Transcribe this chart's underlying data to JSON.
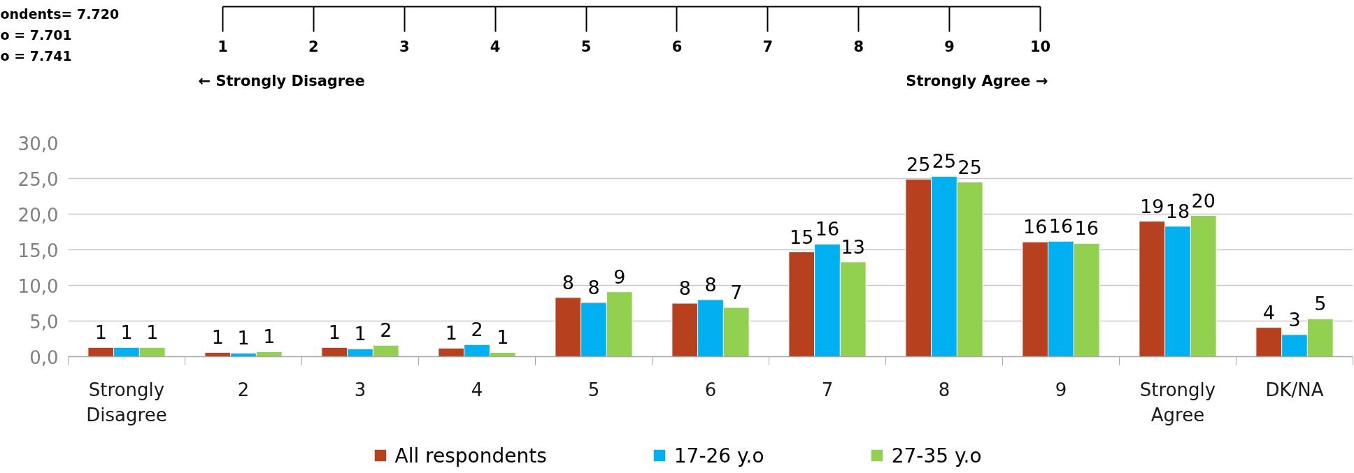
{
  "chart_data": {
    "type": "bar",
    "categories": [
      "Strongly Disagree",
      "2",
      "3",
      "4",
      "5",
      "6",
      "7",
      "8",
      "9",
      "Strongly Agree",
      "DK/NA"
    ],
    "series": [
      {
        "name": "All respondents",
        "color": "#b7411f",
        "values": [
          1.3,
          0.6,
          1.3,
          1.2,
          8.3,
          7.5,
          14.7,
          24.9,
          16.1,
          19.0,
          4.1
        ],
        "value_labels": [
          "1",
          "1",
          "1",
          "1",
          "8",
          "8",
          "15",
          "25",
          "16",
          "19",
          "4"
        ]
      },
      {
        "name": "17-26 y.o",
        "color": "#00b0f0",
        "values": [
          1.3,
          0.5,
          1.1,
          1.7,
          7.6,
          8.0,
          15.8,
          25.3,
          16.2,
          18.3,
          3.1
        ],
        "value_labels": [
          "1",
          "1",
          "1",
          "2",
          "8",
          "8",
          "16",
          "25",
          "16",
          "18",
          "3"
        ]
      },
      {
        "name": "27-35 y.o",
        "color": "#92d050",
        "values": [
          1.3,
          0.7,
          1.6,
          0.6,
          9.1,
          6.9,
          13.3,
          24.5,
          15.9,
          19.8,
          5.3
        ],
        "value_labels": [
          "1",
          "1",
          "2",
          "1",
          "9",
          "7",
          "13",
          "25",
          "16",
          "20",
          "5"
        ]
      }
    ],
    "ylim": [
      0,
      30
    ],
    "yticks": [
      {
        "value": 0,
        "label": "0,0"
      },
      {
        "value": 5,
        "label": "5,0"
      },
      {
        "value": 10,
        "label": "10,0"
      },
      {
        "value": 15,
        "label": "15,0"
      },
      {
        "value": 20,
        "label": "20,0"
      },
      {
        "value": 25,
        "label": "25,0"
      },
      {
        "value": 30,
        "label": "30,0"
      }
    ],
    "x2lim": [
      1,
      10
    ],
    "x2ticks": [
      1,
      2,
      3,
      4,
      5,
      6,
      7,
      8,
      9,
      10
    ],
    "annotations": [
      "ondents= 7.720",
      "o = 7.701",
      "o = 7.741",
      "← Strongly Disagree",
      "Strongly Agree →"
    ],
    "grid": "y",
    "legend": "bottom"
  }
}
